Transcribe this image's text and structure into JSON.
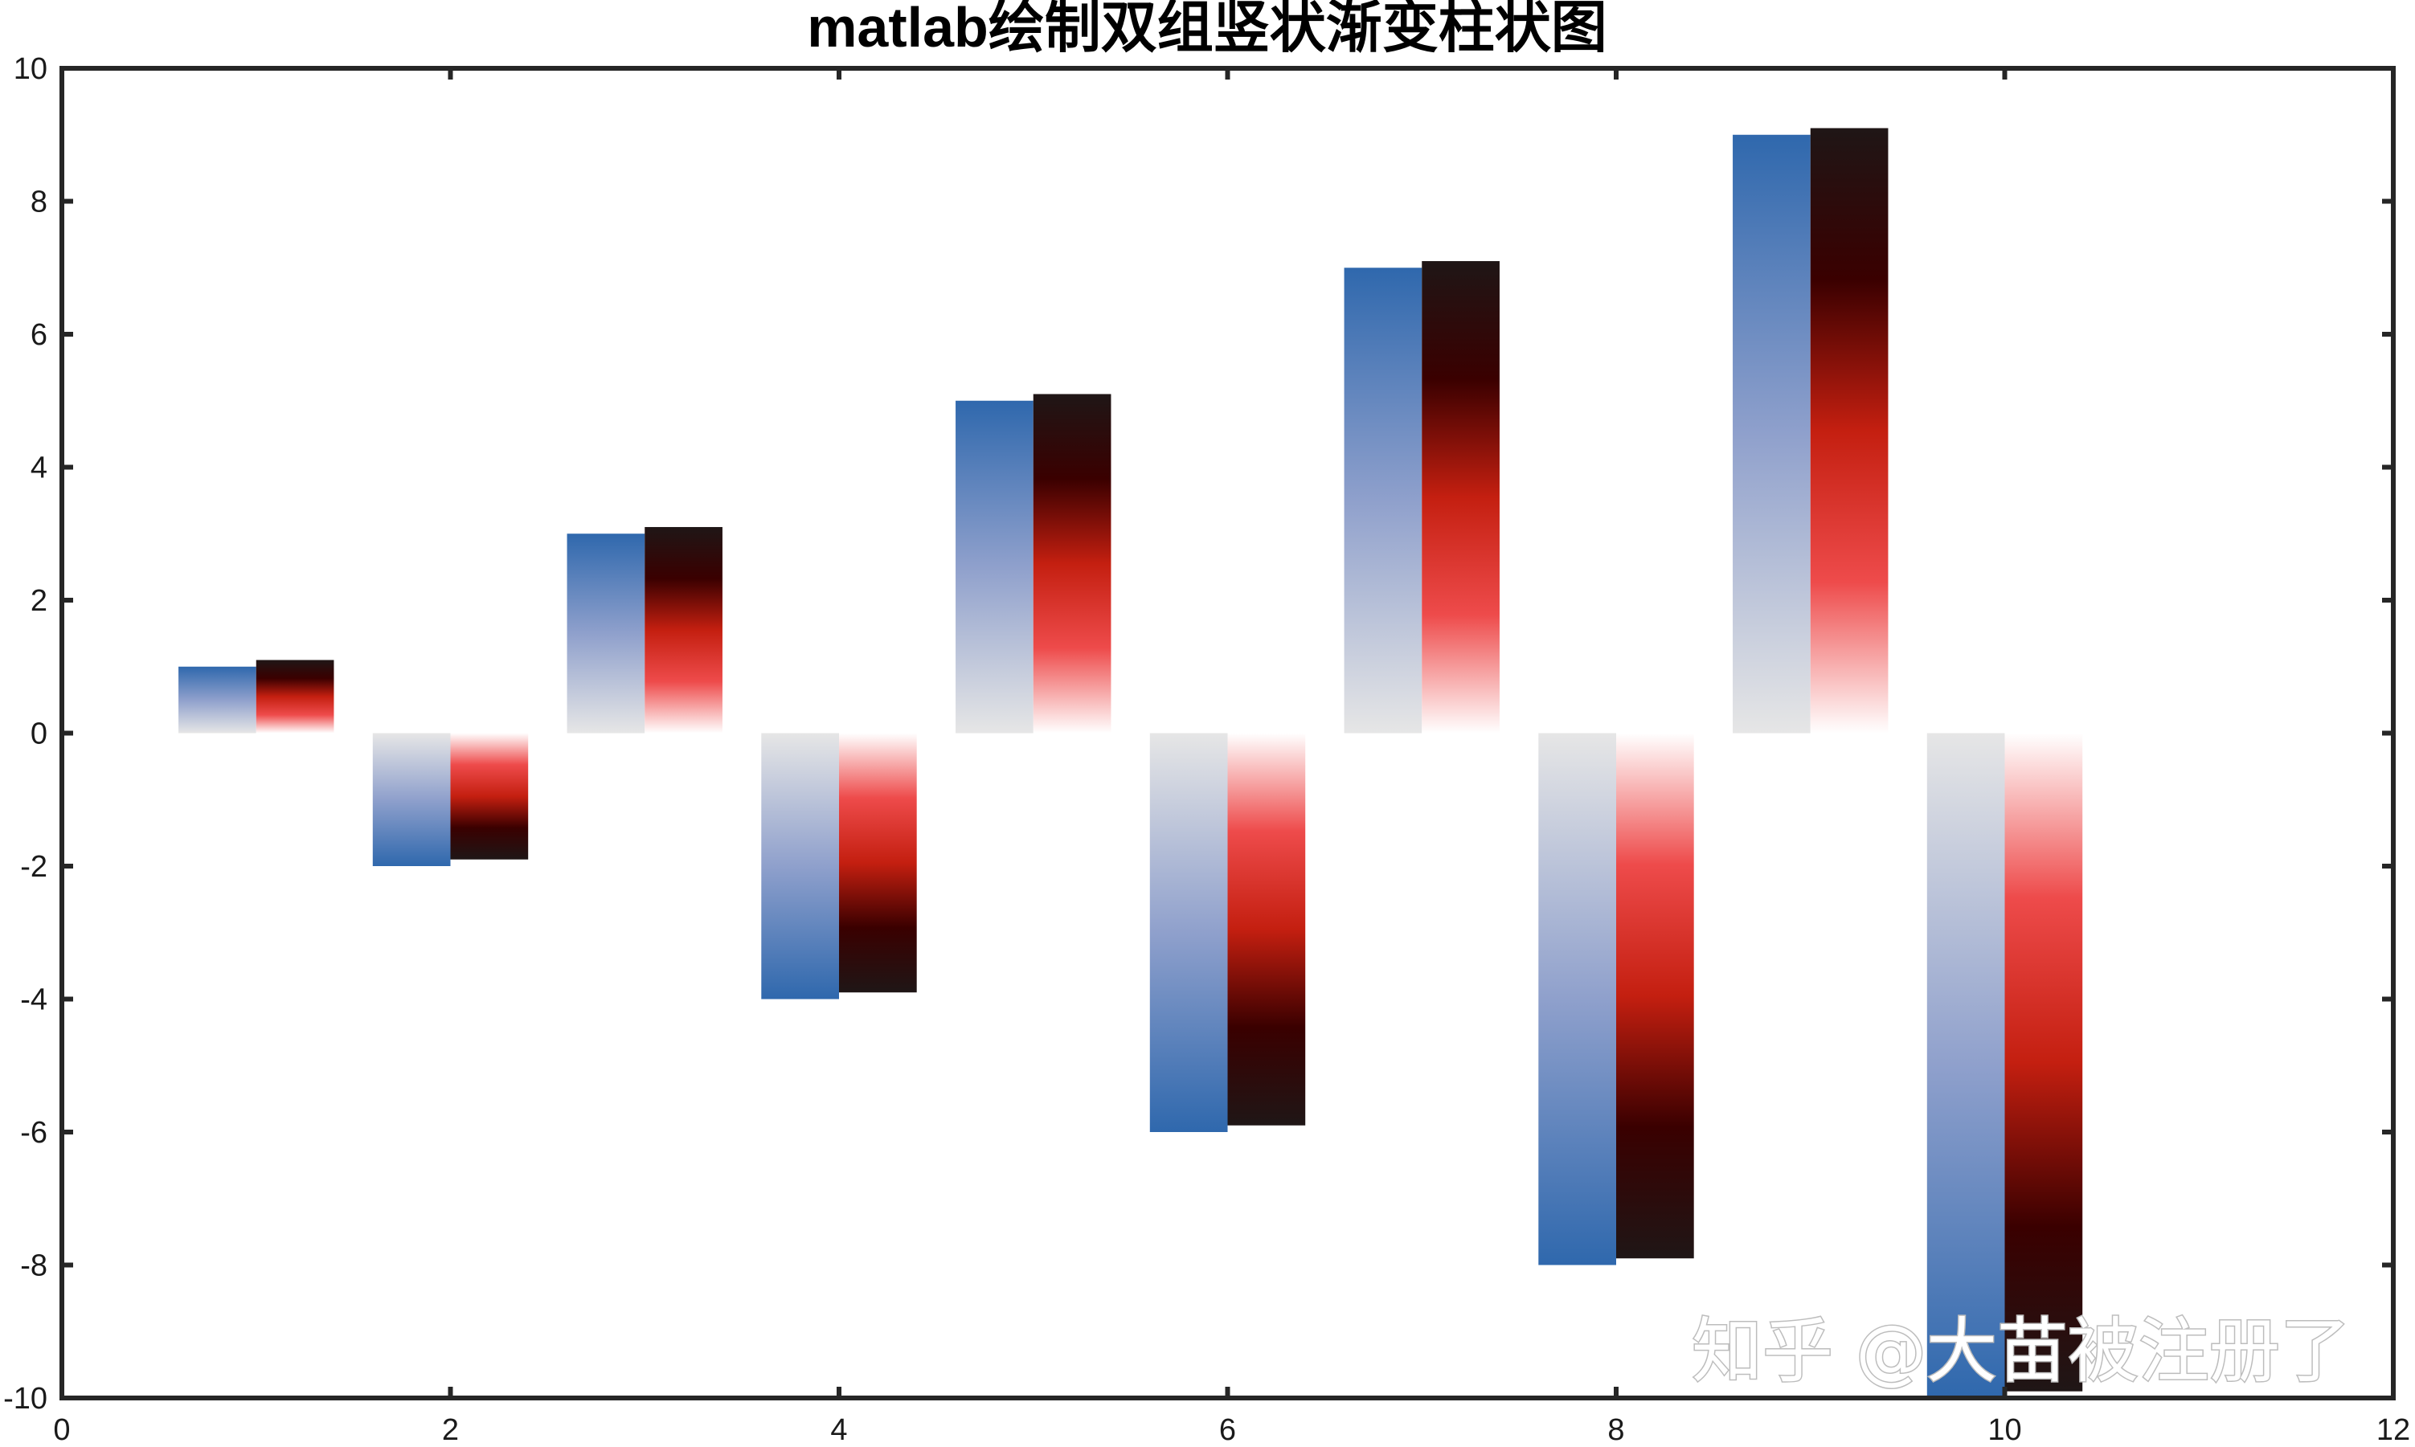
{
  "chart_data": {
    "type": "bar",
    "title": "matlab绘制双组竖状渐变柱状图",
    "xlabel": "",
    "ylabel": "",
    "x": [
      1,
      2,
      3,
      4,
      5,
      6,
      7,
      8,
      9,
      10
    ],
    "series": [
      {
        "values": [
          1,
          -2,
          3,
          -4,
          5,
          -6,
          7,
          -8,
          9,
          -10
        ],
        "gradient": [
          "#e6e6e6",
          "#8fa0cc",
          "#2f68ad"
        ]
      },
      {
        "values": [
          1.1,
          -1.9,
          3.1,
          -3.9,
          5.1,
          -5.9,
          7.1,
          -7.9,
          9.1,
          -9.9
        ],
        "gradient": [
          "#ffffff",
          "#ee4b4b",
          "#c41f10",
          "#3a0000",
          "#1f1616"
        ]
      }
    ],
    "xlim": [
      0,
      12
    ],
    "ylim": [
      -10,
      10
    ],
    "xticks": [
      "0",
      "2",
      "4",
      "6",
      "8",
      "10",
      "12"
    ],
    "yticks": [
      "-10",
      "-8",
      "-6",
      "-4",
      "-2",
      "0",
      "2",
      "4",
      "6",
      "8",
      "10"
    ],
    "grid": false,
    "legend": "none",
    "box": true
  },
  "watermark": "知乎 @大苗被注册了"
}
